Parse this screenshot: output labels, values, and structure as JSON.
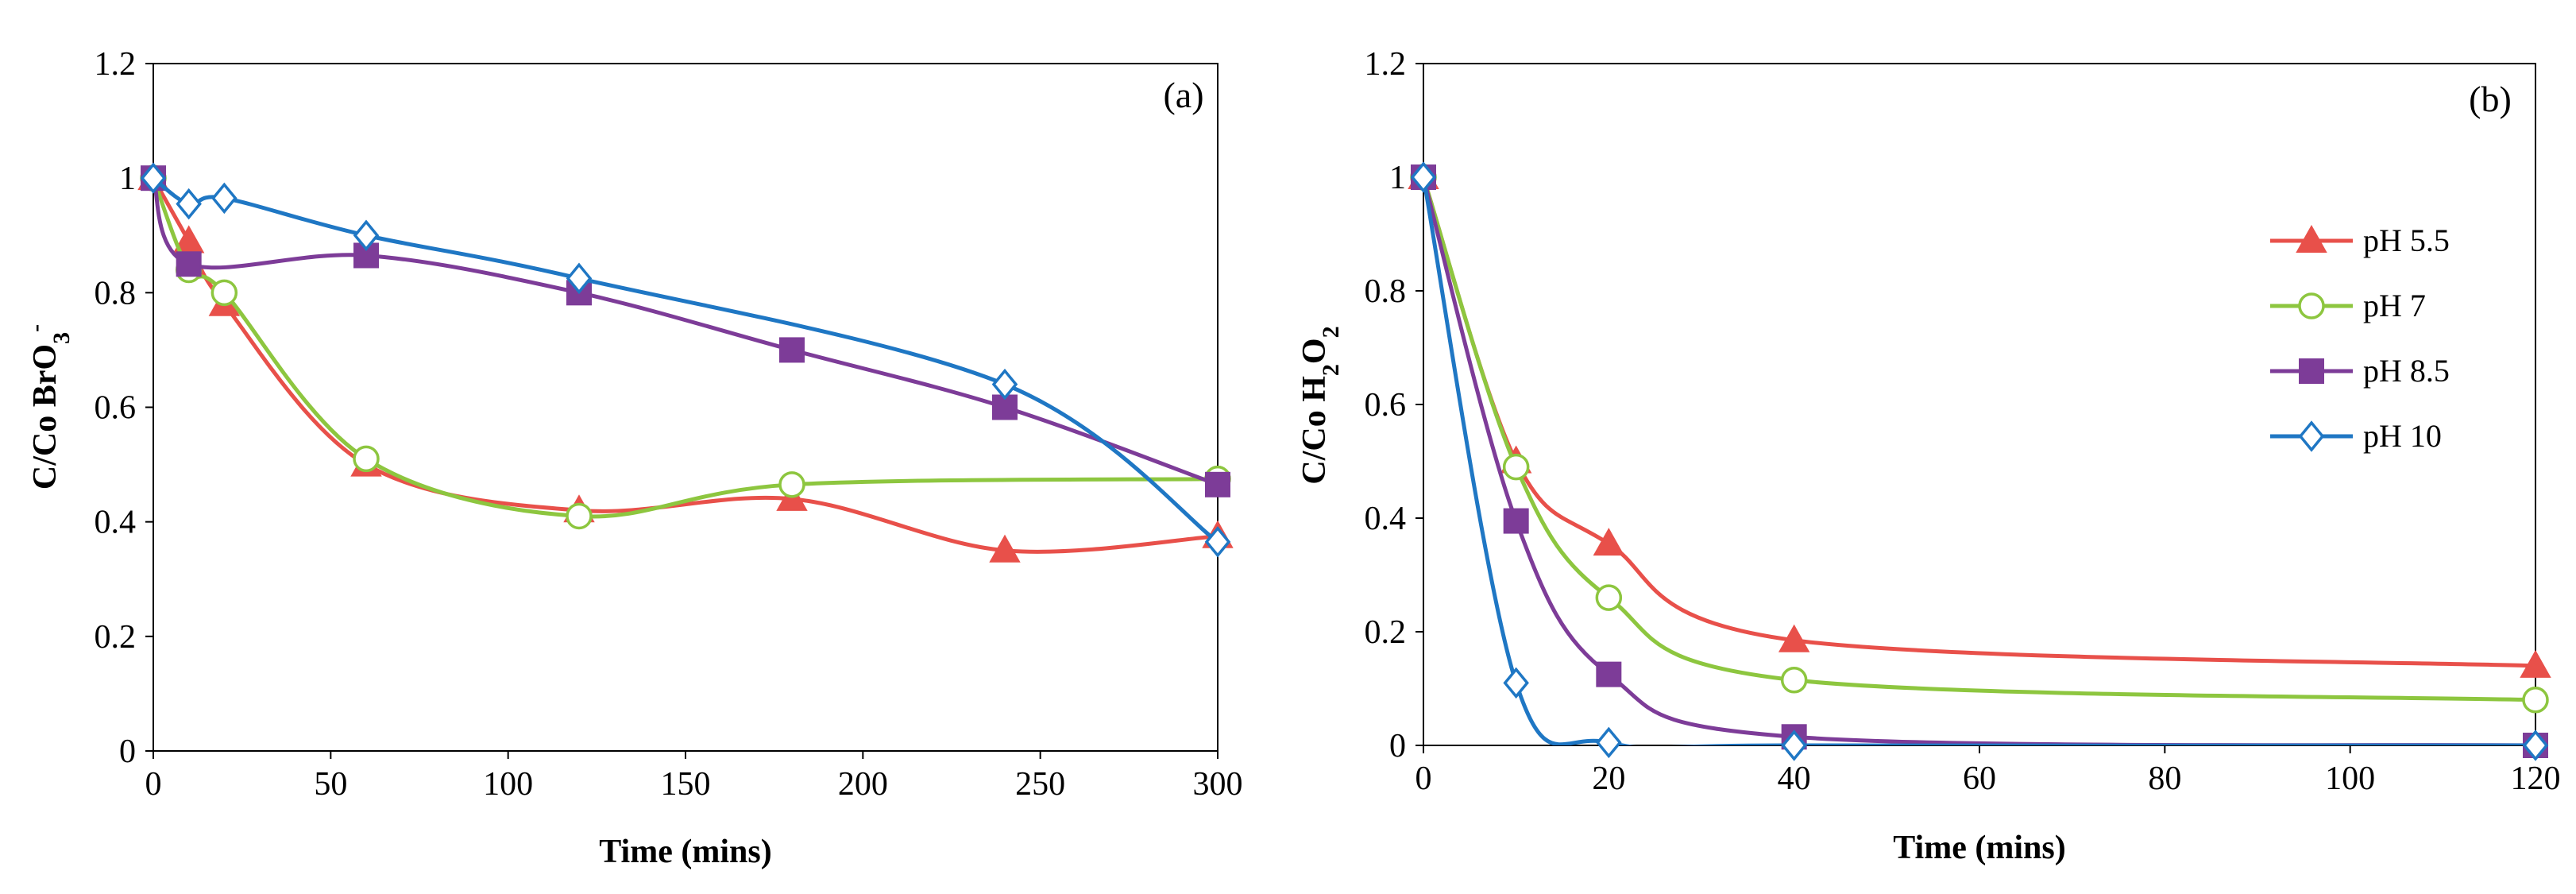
{
  "chart_data": [
    {
      "type": "line",
      "panel_label": "(a)",
      "title": "",
      "xlabel": "Time (mins)",
      "ylabel_prefix": "C/Co  BrO",
      "ylabel_sub": "3",
      "ylabel_sup": "-",
      "xlim": [
        0,
        300
      ],
      "ylim": [
        0,
        1.2
      ],
      "xticks": [
        0,
        50,
        100,
        150,
        200,
        250,
        300
      ],
      "xtick_labels": [
        "0",
        "50",
        "100",
        "150",
        "200",
        "250",
        "300"
      ],
      "yticks": [
        0,
        0.2,
        0.4,
        0.6,
        0.8,
        1.0,
        1.2
      ],
      "ytick_labels": [
        "0",
        "0.2",
        "0.4",
        "0.6",
        "0.8",
        "1",
        "1.2"
      ],
      "grid": false,
      "series": [
        {
          "name": "pH 5.5",
          "color": "#E8504A",
          "marker": "triangle",
          "x": [
            0,
            10,
            20,
            60,
            120,
            180,
            240,
            300
          ],
          "y": [
            1.0,
            0.89,
            0.78,
            0.5,
            0.42,
            0.44,
            0.35,
            0.375
          ]
        },
        {
          "name": "pH 7",
          "color": "#8DC63F",
          "marker": "circle-open",
          "x": [
            0,
            10,
            20,
            60,
            120,
            180,
            300
          ],
          "y": [
            1.0,
            0.84,
            0.8,
            0.51,
            0.41,
            0.465,
            0.475
          ]
        },
        {
          "name": "pH 8.5",
          "color": "#7D3C98",
          "marker": "square",
          "x": [
            0,
            10,
            60,
            120,
            180,
            240,
            300
          ],
          "y": [
            1.0,
            0.85,
            0.865,
            0.8,
            0.7,
            0.6,
            0.465
          ]
        },
        {
          "name": "pH 10",
          "color": "#1F77C4",
          "marker": "diamond-open",
          "x": [
            0,
            10,
            20,
            60,
            120,
            240,
            300
          ],
          "y": [
            1.0,
            0.955,
            0.965,
            0.9,
            0.825,
            0.64,
            0.365
          ]
        }
      ]
    },
    {
      "type": "line",
      "panel_label": "(b)",
      "title": "",
      "xlabel": "Time (mins)",
      "ylabel_prefix": "C/Co  H",
      "ylabel_sub": "2",
      "ylabel_mid": "O",
      "ylabel_sub2": "2",
      "xlim": [
        0,
        120
      ],
      "ylim": [
        0,
        1.2
      ],
      "xticks": [
        0,
        20,
        40,
        60,
        80,
        100,
        120
      ],
      "xtick_labels": [
        "0",
        "20",
        "40",
        "60",
        "80",
        "100",
        "120"
      ],
      "yticks": [
        0,
        0.2,
        0.4,
        0.6,
        0.8,
        1.0,
        1.2
      ],
      "ytick_labels": [
        "0",
        "0.2",
        "0.4",
        "0.6",
        "0.8",
        "1",
        "1.2"
      ],
      "grid": false,
      "legend": "right",
      "series": [
        {
          "name": "pH 5.5",
          "color": "#E8504A",
          "marker": "triangle",
          "x": [
            0,
            10,
            20,
            40,
            120
          ],
          "y": [
            1.0,
            0.5,
            0.355,
            0.185,
            0.14
          ]
        },
        {
          "name": "pH 7",
          "color": "#8DC63F",
          "marker": "circle-open",
          "x": [
            0,
            10,
            20,
            40,
            120
          ],
          "y": [
            1.0,
            0.49,
            0.26,
            0.115,
            0.08
          ]
        },
        {
          "name": "pH 8.5",
          "color": "#7D3C98",
          "marker": "square",
          "x": [
            0,
            10,
            20,
            40,
            120
          ],
          "y": [
            1.0,
            0.395,
            0.125,
            0.015,
            0.0
          ]
        },
        {
          "name": "pH 10",
          "color": "#1F77C4",
          "marker": "diamond-open",
          "x": [
            0,
            10,
            20,
            40,
            120
          ],
          "y": [
            1.0,
            0.11,
            0.005,
            0.0,
            0.0
          ]
        }
      ]
    }
  ]
}
